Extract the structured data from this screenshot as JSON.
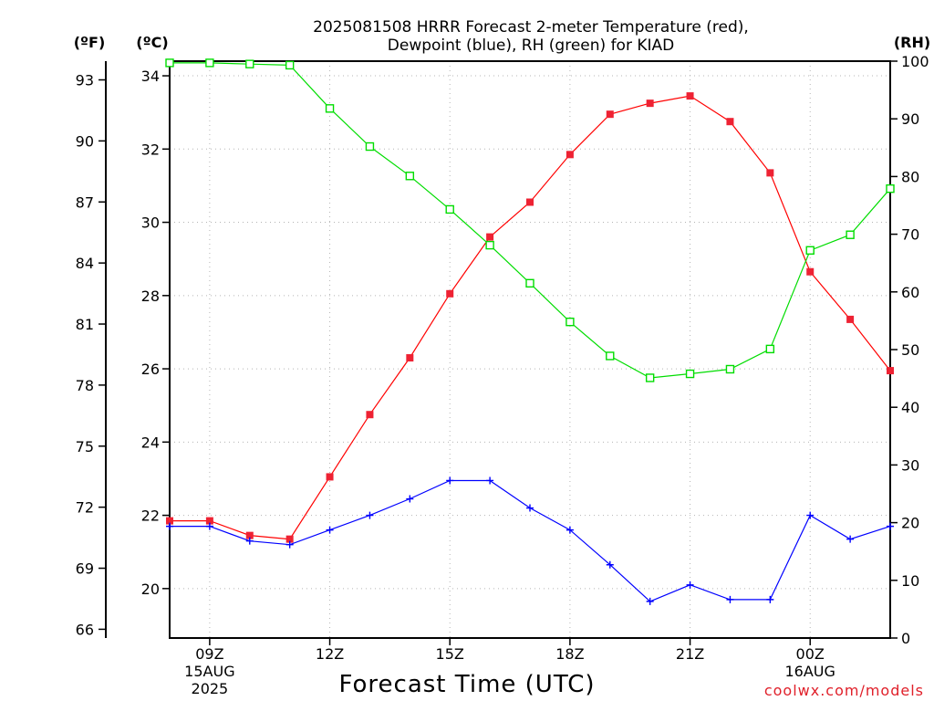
{
  "chart_data": {
    "type": "line",
    "title": [
      "2025081508 HRRR Forecast 2-meter Temperature (red),",
      "Dewpoint (blue), RH (green) for KIAD"
    ],
    "xlabel": "Forecast Time (UTC)",
    "credit": "coolwx.com/models",
    "units": {
      "left_outer": "(ºF)",
      "left_inner": "(ºC)",
      "right": "(RH)"
    },
    "x": [
      "2025-08-15 08Z",
      "09Z",
      "10Z",
      "11Z",
      "12Z",
      "13Z",
      "14Z",
      "15Z",
      "16Z",
      "17Z",
      "18Z",
      "19Z",
      "20Z",
      "21Z",
      "22Z",
      "23Z",
      "2025-08-16 00Z",
      "01Z",
      "02Z"
    ],
    "x_tick_labels": [
      {
        "hour": "2025-08-15 09Z",
        "lines": [
          "09Z",
          "15AUG",
          "2025"
        ]
      },
      {
        "hour": "2025-08-15 12Z",
        "lines": [
          "12Z"
        ]
      },
      {
        "hour": "2025-08-15 15Z",
        "lines": [
          "15Z"
        ]
      },
      {
        "hour": "2025-08-15 18Z",
        "lines": [
          "18Z"
        ]
      },
      {
        "hour": "2025-08-15 21Z",
        "lines": [
          "21Z"
        ]
      },
      {
        "hour": "2025-08-16 00Z",
        "lines": [
          "00Z",
          "16AUG"
        ]
      }
    ],
    "series": [
      {
        "name": "Temperature",
        "axis": "C",
        "color": "#ff0000",
        "marker": "filled-square",
        "values": [
          21.85,
          21.85,
          21.45,
          21.35,
          23.05,
          24.75,
          26.3,
          28.05,
          29.6,
          30.55,
          31.85,
          32.95,
          33.25,
          33.45,
          32.75,
          31.35,
          28.65,
          27.35,
          25.95
        ]
      },
      {
        "name": "Dewpoint",
        "axis": "C",
        "color": "#0000ff",
        "marker": "plus",
        "values": [
          21.7,
          21.7,
          21.3,
          21.2,
          21.6,
          22.0,
          22.45,
          22.95,
          22.95,
          22.2,
          21.6,
          20.65,
          19.65,
          20.1,
          19.7,
          19.7,
          22.0,
          21.35,
          21.7
        ]
      },
      {
        "name": "RH",
        "axis": "RH",
        "color": "#00dd00",
        "marker": "open-square",
        "values": [
          99.7,
          99.7,
          99.5,
          99.3,
          91.8,
          85.2,
          80.1,
          74.3,
          68.1,
          61.5,
          54.8,
          48.9,
          45.1,
          45.8,
          46.6,
          50.1,
          67.2,
          69.9,
          77.9
        ]
      }
    ],
    "y_left_C": {
      "ylim": [
        18.65,
        34.4
      ],
      "ticks": [
        20,
        22,
        24,
        26,
        28,
        30,
        32,
        34
      ]
    },
    "y_left_F": {
      "ticks": [
        66,
        69,
        72,
        75,
        78,
        81,
        84,
        87,
        90,
        93
      ]
    },
    "y_right_RH": {
      "ylim": [
        0,
        100
      ],
      "ticks": [
        0,
        10,
        20,
        30,
        40,
        50,
        60,
        70,
        80,
        90,
        100
      ]
    },
    "grid": true
  }
}
